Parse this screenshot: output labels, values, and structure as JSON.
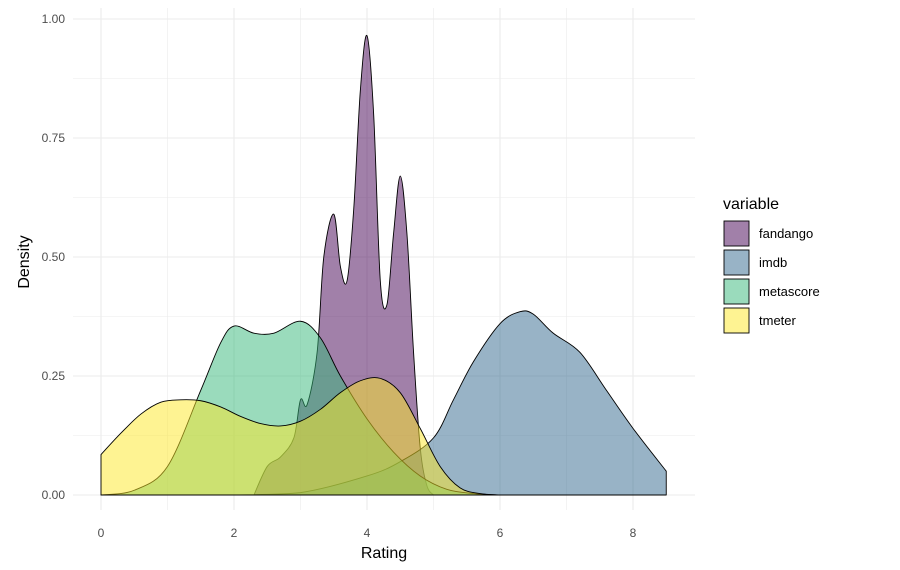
{
  "chart_data": {
    "type": "area",
    "title": "",
    "xlabel": "Rating",
    "ylabel": "Density",
    "xlim": [
      0,
      8.5
    ],
    "ylim": [
      0,
      1.0
    ],
    "xticks": [
      "0",
      "2",
      "4",
      "6",
      "8"
    ],
    "yticks": [
      "0.00",
      "0.25",
      "0.50",
      "0.75",
      "1.00"
    ],
    "grid": true,
    "legend": {
      "title": "variable",
      "position": "right"
    },
    "series": [
      {
        "name": "fandango",
        "color": "#440154",
        "x": [
          2.3,
          2.5,
          2.7,
          2.9,
          3.0,
          3.1,
          3.25,
          3.35,
          3.5,
          3.6,
          3.7,
          3.8,
          3.9,
          4.0,
          4.1,
          4.2,
          4.3,
          4.4,
          4.5,
          4.6,
          4.7,
          4.8,
          4.9,
          5.0
        ],
        "y": [
          0.0,
          0.06,
          0.08,
          0.12,
          0.2,
          0.19,
          0.3,
          0.5,
          0.59,
          0.48,
          0.45,
          0.6,
          0.85,
          0.965,
          0.8,
          0.45,
          0.4,
          0.55,
          0.67,
          0.55,
          0.3,
          0.1,
          0.02,
          0.0
        ]
      },
      {
        "name": "imdb",
        "color": "#31688E",
        "x": [
          2.0,
          3.0,
          4.0,
          4.5,
          5.0,
          5.3,
          5.6,
          6.0,
          6.3,
          6.5,
          6.8,
          7.2,
          7.6,
          8.0,
          8.5
        ],
        "y": [
          0.0,
          0.005,
          0.04,
          0.07,
          0.12,
          0.2,
          0.28,
          0.36,
          0.385,
          0.38,
          0.34,
          0.3,
          0.22,
          0.14,
          0.05
        ]
      },
      {
        "name": "metascore",
        "color": "#35B779",
        "x": [
          0.0,
          0.5,
          1.0,
          1.5,
          1.8,
          2.0,
          2.3,
          2.6,
          3.0,
          3.3,
          3.6,
          4.0,
          4.4,
          4.8,
          5.2,
          5.6,
          6.0
        ],
        "y": [
          0.0,
          0.01,
          0.06,
          0.22,
          0.32,
          0.355,
          0.34,
          0.34,
          0.365,
          0.33,
          0.25,
          0.16,
          0.09,
          0.04,
          0.012,
          0.003,
          0.0
        ]
      },
      {
        "name": "tmeter",
        "color": "#FDE725",
        "x": [
          0.0,
          0.3,
          0.6,
          0.9,
          1.2,
          1.5,
          1.8,
          2.1,
          2.4,
          2.7,
          3.0,
          3.3,
          3.6,
          3.9,
          4.2,
          4.5,
          4.8,
          5.1,
          5.4,
          5.7,
          6.0
        ],
        "y": [
          0.085,
          0.13,
          0.17,
          0.195,
          0.2,
          0.198,
          0.185,
          0.165,
          0.15,
          0.145,
          0.155,
          0.18,
          0.215,
          0.24,
          0.245,
          0.215,
          0.14,
          0.06,
          0.015,
          0.003,
          0.0
        ]
      }
    ]
  }
}
